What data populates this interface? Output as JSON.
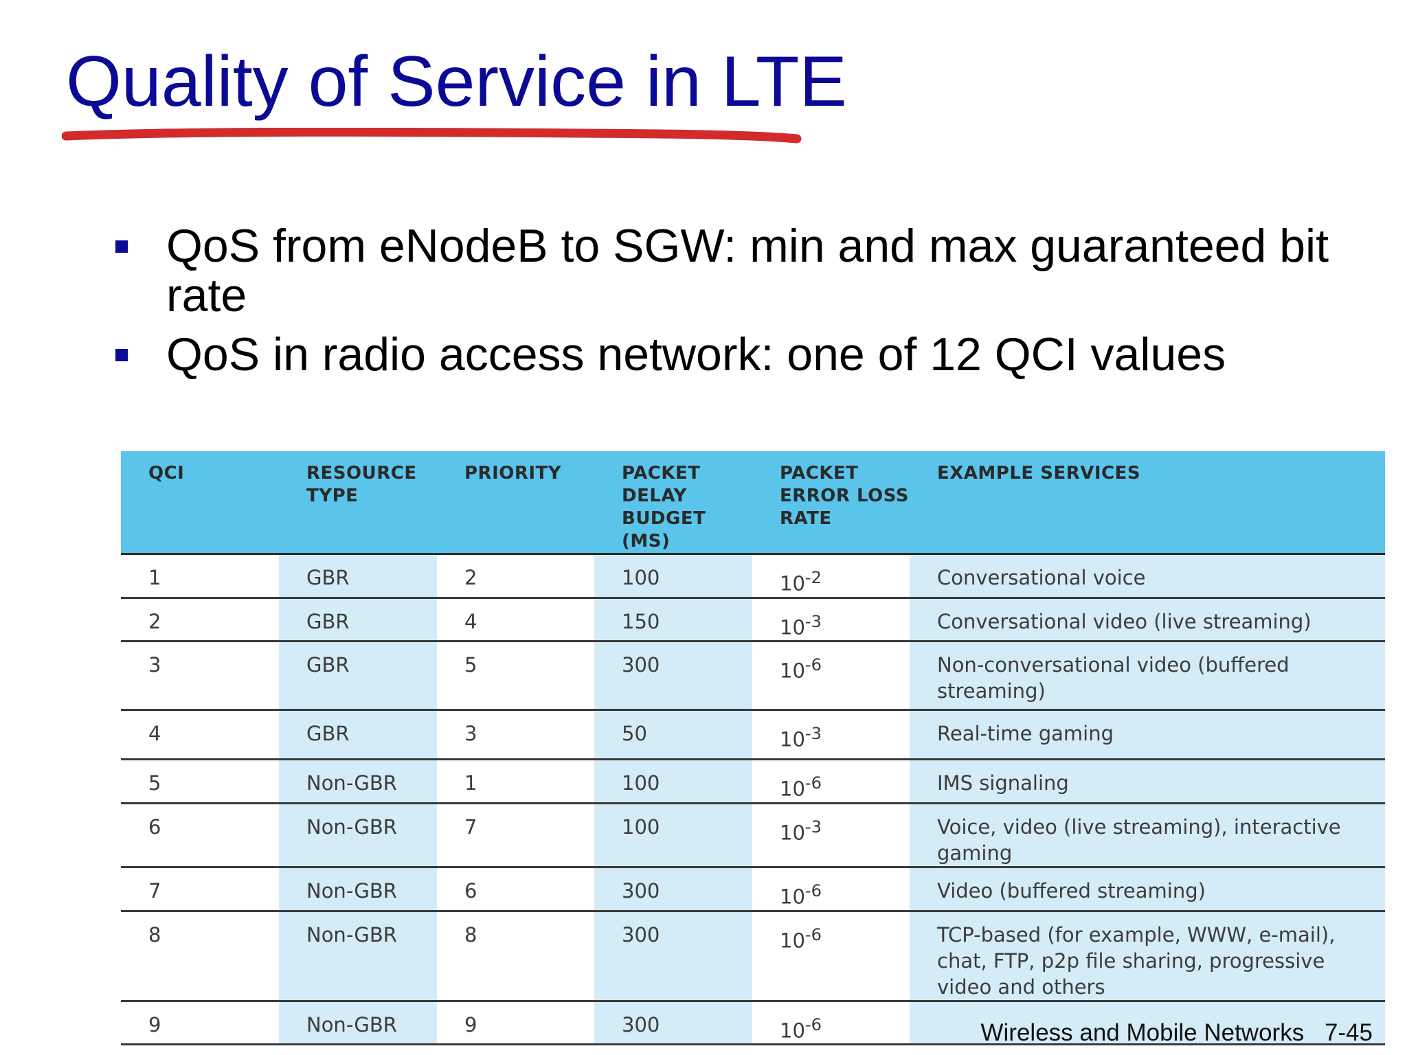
{
  "title": "Quality of Service in LTE",
  "bullets": [
    "QoS from eNodeB to SGW: min and max guaranteed bit rate",
    "QoS in radio access network: one of 12 QCI values"
  ],
  "table": {
    "headers": [
      "QCI",
      "RESOURCE TYPE",
      "PRIORITY",
      "PACKET DELAY BUDGET (MS)",
      "PACKET ERROR LOSS RATE",
      "EXAMPLE SERVICES"
    ],
    "rows": [
      {
        "qci": "1",
        "type": "GBR",
        "priority": "2",
        "delay": "100",
        "loss_base": "10",
        "loss_exp": "-2",
        "services": "Conversational voice"
      },
      {
        "qci": "2",
        "type": "GBR",
        "priority": "4",
        "delay": "150",
        "loss_base": "10",
        "loss_exp": "-3",
        "services": "Conversational video (live streaming)"
      },
      {
        "qci": "3",
        "type": "GBR",
        "priority": "5",
        "delay": "300",
        "loss_base": "10",
        "loss_exp": "-6",
        "services": "Non-conversational video (buffered streaming)"
      },
      {
        "qci": "4",
        "type": "GBR",
        "priority": "3",
        "delay": "50",
        "loss_base": "10",
        "loss_exp": "-3",
        "services": "Real-time gaming"
      },
      {
        "qci": "5",
        "type": "Non-GBR",
        "priority": "1",
        "delay": "100",
        "loss_base": "10",
        "loss_exp": "-6",
        "services": "IMS signaling"
      },
      {
        "qci": "6",
        "type": "Non-GBR",
        "priority": "7",
        "delay": "100",
        "loss_base": "10",
        "loss_exp": "-3",
        "services": "Voice, video (live streaming), interactive gaming"
      },
      {
        "qci": "7",
        "type": "Non-GBR",
        "priority": "6",
        "delay": "300",
        "loss_base": "10",
        "loss_exp": "-6",
        "services": "Video (buffered streaming)"
      },
      {
        "qci": "8",
        "type": "Non-GBR",
        "priority": "8",
        "delay": "300",
        "loss_base": "10",
        "loss_exp": "-6",
        "services": "TCP-based (for example, WWW, e-mail), chat, FTP, p2p file sharing, progressive video and others"
      },
      {
        "qci": "9",
        "type": "Non-GBR",
        "priority": "9",
        "delay": "300",
        "loss_base": "10",
        "loss_exp": "-6",
        "services": ""
      }
    ]
  },
  "footer": {
    "course": "Wireless and Mobile Networks",
    "page": "7-45"
  },
  "colors": {
    "title": "#0a0a96",
    "underline": "#d12b2b",
    "header_bg": "#5bc4ea",
    "shade": "#d3ecf7"
  }
}
